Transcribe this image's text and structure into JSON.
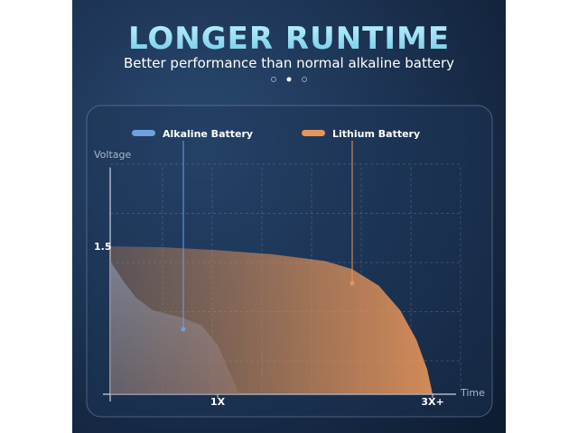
{
  "chart_data": {
    "type": "area",
    "title": "LONGER RUNTIME",
    "subtitle": "Better performance than normal alkaline battery",
    "y_label": "Voltage",
    "x_label": "Time",
    "xlim": [
      0,
      3.25
    ],
    "ylim": [
      0,
      2.3
    ],
    "yticks": [
      1.5
    ],
    "xticks": [
      {
        "value": 1,
        "label": "1X"
      },
      {
        "value": 3,
        "label": "3X+"
      }
    ],
    "series": [
      {
        "name": "Alkaline Battery",
        "color": "#6fa0e0",
        "x": [
          0,
          0.12,
          0.24,
          0.4,
          0.66,
          0.85,
          1.0,
          1.1,
          1.2
        ],
        "values": [
          1.35,
          1.15,
          0.98,
          0.85,
          0.78,
          0.7,
          0.5,
          0.25,
          0
        ]
      },
      {
        "name": "Lithium Battery",
        "color": "#e8955a",
        "x": [
          0,
          0.5,
          1,
          1.5,
          2,
          2.25,
          2.5,
          2.7,
          2.85,
          2.95,
          3.0
        ],
        "values": [
          1.5,
          1.49,
          1.46,
          1.42,
          1.35,
          1.27,
          1.1,
          0.85,
          0.55,
          0.25,
          0
        ]
      }
    ]
  }
}
